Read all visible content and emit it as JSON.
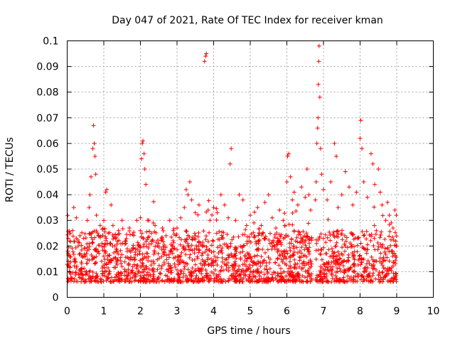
{
  "chart_data": {
    "type": "scatter",
    "title": "Day 047 of 2021, Rate Of TEC Index for receiver kman",
    "xlabel": "GPS time / hours",
    "ylabel": "ROTI / TECUs",
    "xlim": [
      0,
      10
    ],
    "ylim": [
      0,
      0.1
    ],
    "grid": true,
    "marker": "+",
    "color": "#ff0000",
    "x_ticks": [
      0,
      1,
      2,
      3,
      4,
      5,
      6,
      7,
      8,
      9,
      10
    ],
    "y_ticks": [
      0,
      0.01,
      0.02,
      0.03,
      0.04,
      0.05,
      0.06,
      0.07,
      0.08,
      0.09,
      0.1
    ],
    "x_tick_labels": [
      "0",
      "1",
      "2",
      "3",
      "4",
      "5",
      "6",
      "7",
      "8",
      "9",
      "10"
    ],
    "y_tick_labels": [
      "0",
      "0.01",
      "0.02",
      "0.03",
      "0.04",
      "0.05",
      "0.06",
      "0.07",
      "0.08",
      "0.09",
      "0.1"
    ],
    "data_gap": [
      6.68,
      6.78
    ],
    "series": [
      {
        "name": "ROTI",
        "points": [
          [
            0.02,
            0.018
          ],
          [
            0.05,
            0.012
          ],
          [
            0.08,
            0.025
          ],
          [
            0.1,
            0.009
          ],
          [
            0.15,
            0.026
          ],
          [
            0.18,
            0.035
          ],
          [
            0.22,
            0.014
          ],
          [
            0.25,
            0.031
          ],
          [
            0.3,
            0.02
          ],
          [
            0.35,
            0.024
          ],
          [
            0.4,
            0.011
          ],
          [
            0.45,
            0.023
          ],
          [
            0.5,
            0.016
          ],
          [
            0.55,
            0.03
          ],
          [
            0.6,
            0.035
          ],
          [
            0.62,
            0.04
          ],
          [
            0.65,
            0.047
          ],
          [
            0.7,
            0.058
          ],
          [
            0.72,
            0.067
          ],
          [
            0.74,
            0.06
          ],
          [
            0.76,
            0.055
          ],
          [
            0.78,
            0.048
          ],
          [
            0.8,
            0.032
          ],
          [
            0.85,
            0.018
          ],
          [
            0.9,
            0.028
          ],
          [
            0.95,
            0.021
          ],
          [
            1.0,
            0.03
          ],
          [
            1.05,
            0.041
          ],
          [
            1.08,
            0.042
          ],
          [
            1.12,
            0.025
          ],
          [
            1.2,
            0.036
          ],
          [
            1.25,
            0.028
          ],
          [
            1.3,
            0.02
          ],
          [
            1.4,
            0.026
          ],
          [
            1.5,
            0.03
          ],
          [
            1.6,
            0.022
          ],
          [
            1.7,
            0.027
          ],
          [
            1.8,
            0.019
          ],
          [
            1.9,
            0.03
          ],
          [
            2.0,
            0.031
          ],
          [
            2.03,
            0.054
          ],
          [
            2.05,
            0.06
          ],
          [
            2.07,
            0.061
          ],
          [
            2.1,
            0.056
          ],
          [
            2.12,
            0.05
          ],
          [
            2.15,
            0.044
          ],
          [
            2.2,
            0.03
          ],
          [
            2.3,
            0.025
          ],
          [
            2.4,
            0.028
          ],
          [
            2.5,
            0.021
          ],
          [
            2.6,
            0.027
          ],
          [
            2.7,
            0.024
          ],
          [
            2.8,
            0.03
          ],
          [
            2.9,
            0.026
          ],
          [
            3.0,
            0.027
          ],
          [
            3.1,
            0.031
          ],
          [
            3.2,
            0.035
          ],
          [
            3.25,
            0.042
          ],
          [
            3.3,
            0.04
          ],
          [
            3.35,
            0.045
          ],
          [
            3.4,
            0.038
          ],
          [
            3.5,
            0.033
          ],
          [
            3.6,
            0.036
          ],
          [
            3.75,
            0.092
          ],
          [
            3.78,
            0.094
          ],
          [
            3.8,
            0.095
          ],
          [
            3.85,
            0.034
          ],
          [
            3.9,
            0.03
          ],
          [
            4.0,
            0.035
          ],
          [
            4.1,
            0.033
          ],
          [
            4.2,
            0.04
          ],
          [
            4.3,
            0.036
          ],
          [
            4.4,
            0.031
          ],
          [
            4.45,
            0.052
          ],
          [
            4.48,
            0.058
          ],
          [
            4.6,
            0.03
          ],
          [
            4.7,
            0.04
          ],
          [
            4.8,
            0.038
          ],
          [
            4.9,
            0.028
          ],
          [
            5.0,
            0.032
          ],
          [
            5.1,
            0.029
          ],
          [
            5.2,
            0.035
          ],
          [
            5.3,
            0.028
          ],
          [
            5.4,
            0.037
          ],
          [
            5.5,
            0.04
          ],
          [
            5.6,
            0.031
          ],
          [
            5.7,
            0.027
          ],
          [
            5.8,
            0.034
          ],
          [
            5.9,
            0.03
          ],
          [
            6.0,
            0.045
          ],
          [
            6.02,
            0.055
          ],
          [
            6.05,
            0.056
          ],
          [
            6.1,
            0.047
          ],
          [
            6.15,
            0.038
          ],
          [
            6.2,
            0.041
          ],
          [
            6.3,
            0.036
          ],
          [
            6.4,
            0.043
          ],
          [
            6.5,
            0.039
          ],
          [
            6.55,
            0.05
          ],
          [
            6.6,
            0.04
          ],
          [
            6.65,
            0.034
          ],
          [
            6.78,
            0.038
          ],
          [
            6.8,
            0.045
          ],
          [
            6.82,
            0.06
          ],
          [
            6.84,
            0.066
          ],
          [
            6.85,
            0.07
          ],
          [
            6.86,
            0.083
          ],
          [
            6.87,
            0.092
          ],
          [
            6.88,
            0.098
          ],
          [
            6.9,
            0.078
          ],
          [
            6.92,
            0.058
          ],
          [
            6.95,
            0.048
          ],
          [
            7.0,
            0.042
          ],
          [
            7.1,
            0.038
          ],
          [
            7.2,
            0.045
          ],
          [
            7.3,
            0.06
          ],
          [
            7.35,
            0.055
          ],
          [
            7.4,
            0.035
          ],
          [
            7.5,
            0.04
          ],
          [
            7.6,
            0.049
          ],
          [
            7.7,
            0.043
          ],
          [
            7.8,
            0.036
          ],
          [
            7.9,
            0.041
          ],
          [
            8.0,
            0.062
          ],
          [
            8.02,
            0.069
          ],
          [
            8.05,
            0.058
          ],
          [
            8.1,
            0.045
          ],
          [
            8.2,
            0.039
          ],
          [
            8.3,
            0.056
          ],
          [
            8.35,
            0.052
          ],
          [
            8.4,
            0.044
          ],
          [
            8.5,
            0.05
          ],
          [
            8.55,
            0.041
          ],
          [
            8.6,
            0.036
          ],
          [
            8.7,
            0.03
          ],
          [
            8.75,
            0.037
          ],
          [
            8.8,
            0.032
          ],
          [
            8.85,
            0.029
          ],
          [
            8.9,
            0.027
          ],
          [
            8.95,
            0.034
          ],
          [
            9.0,
            0.02
          ]
        ]
      }
    ]
  }
}
